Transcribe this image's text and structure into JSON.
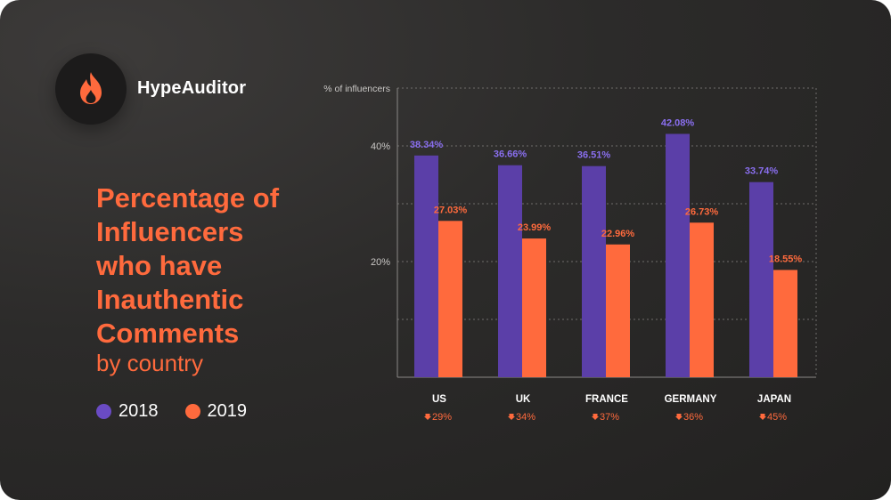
{
  "brand": {
    "name": "HypeAuditor",
    "icon": "flame-icon",
    "accent": "#ff6a3d"
  },
  "title_lines": [
    "Percentage of",
    "Influencers",
    "who have",
    "Inauthentic",
    "Comments"
  ],
  "subtitle": "by country",
  "legend": [
    {
      "label": "2018",
      "color": "#6a4bc4"
    },
    {
      "label": "2019",
      "color": "#ff6a3d"
    }
  ],
  "chart_data": {
    "type": "bar",
    "ylabel": "% of influencers",
    "categories": [
      "US",
      "UK",
      "FRANCE",
      "GERMANY",
      "JAPAN"
    ],
    "series": [
      {
        "name": "2018",
        "values": [
          38.34,
          36.66,
          36.51,
          42.08,
          33.74
        ],
        "labels": [
          "38.34%",
          "36.66%",
          "36.51%",
          "42.08%",
          "33.74%"
        ],
        "color": "#5b3fa8",
        "label_color": "#8a6ff0"
      },
      {
        "name": "2019",
        "values": [
          27.03,
          23.99,
          22.96,
          26.73,
          18.55
        ],
        "labels": [
          "27.03%",
          "23.99%",
          "22.96%",
          "26.73%",
          "18.55%"
        ],
        "color": "#ff6a3d",
        "label_color": "#ff6a3d"
      }
    ],
    "changes": [
      "29%",
      "34%",
      "37%",
      "36%",
      "45%"
    ],
    "change_color": "#ff6a3d",
    "yticks": [
      {
        "value": 20,
        "label": "20%"
      },
      {
        "value": 40,
        "label": "40%"
      }
    ],
    "ylim": [
      0,
      50
    ],
    "grid": true
  }
}
